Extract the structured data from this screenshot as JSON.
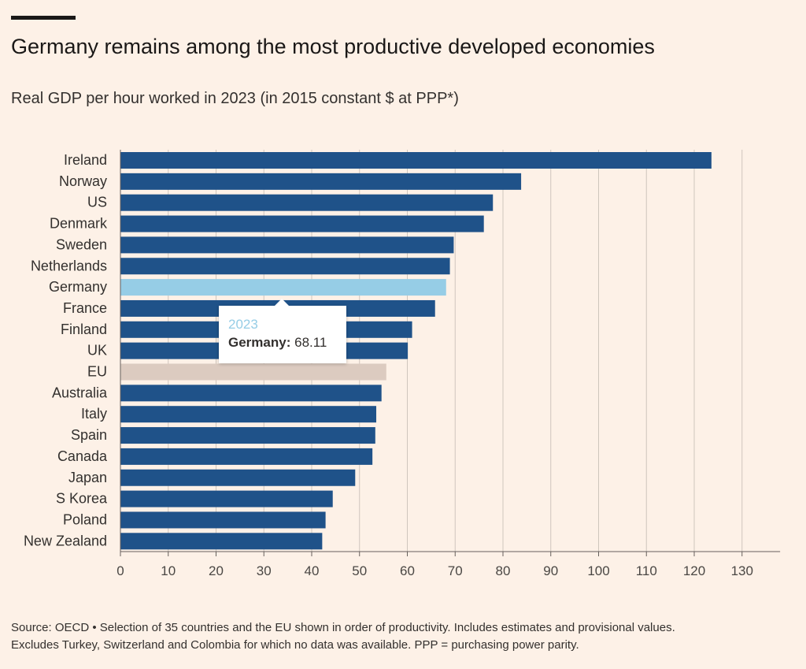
{
  "header": {
    "title": "Germany remains among the most productive developed economies",
    "subtitle": "Real GDP per hour worked in 2023 (in 2015 constant $ at PPP*)"
  },
  "chart_data": {
    "type": "bar",
    "orientation": "horizontal",
    "title": "Germany remains among the most productive developed economies",
    "subtitle": "Real GDP per hour worked in 2023 (in 2015 constant $ at PPP*)",
    "xlabel": "",
    "ylabel": "",
    "xlim": [
      0,
      135
    ],
    "xticks": [
      0,
      10,
      20,
      30,
      40,
      50,
      60,
      70,
      80,
      90,
      100,
      110,
      120,
      130
    ],
    "grid": "vertical",
    "categories": [
      "Ireland",
      "Norway",
      "US",
      "Denmark",
      "Sweden",
      "Netherlands",
      "Germany",
      "France",
      "Finland",
      "UK",
      "EU",
      "Australia",
      "Italy",
      "Spain",
      "Canada",
      "Japan",
      "S Korea",
      "Poland",
      "New Zealand"
    ],
    "values": [
      123.6,
      83.8,
      77.9,
      76.0,
      69.7,
      68.9,
      68.11,
      65.8,
      61.0,
      60.1,
      55.6,
      54.6,
      53.5,
      53.3,
      52.7,
      49.1,
      44.4,
      42.9,
      42.2
    ],
    "colors": {
      "default": "#1f5289",
      "highlight": "#96cde6",
      "eu": "#dccbc0",
      "grid": "#cfc6bd",
      "axis": "#66605c"
    },
    "highlight_category": "Germany",
    "eu_category": "EU"
  },
  "tooltip": {
    "year": "2023",
    "label": "Germany:",
    "value": "68.11"
  },
  "footer": {
    "source_line1": "Source: OECD • Selection of 35 countries and the EU shown in order of productivity. Includes estimates and provisional values.",
    "source_line2": "Excludes Turkey, Switzerland and Colombia for which no data was available. PPP = purchasing power parity."
  }
}
